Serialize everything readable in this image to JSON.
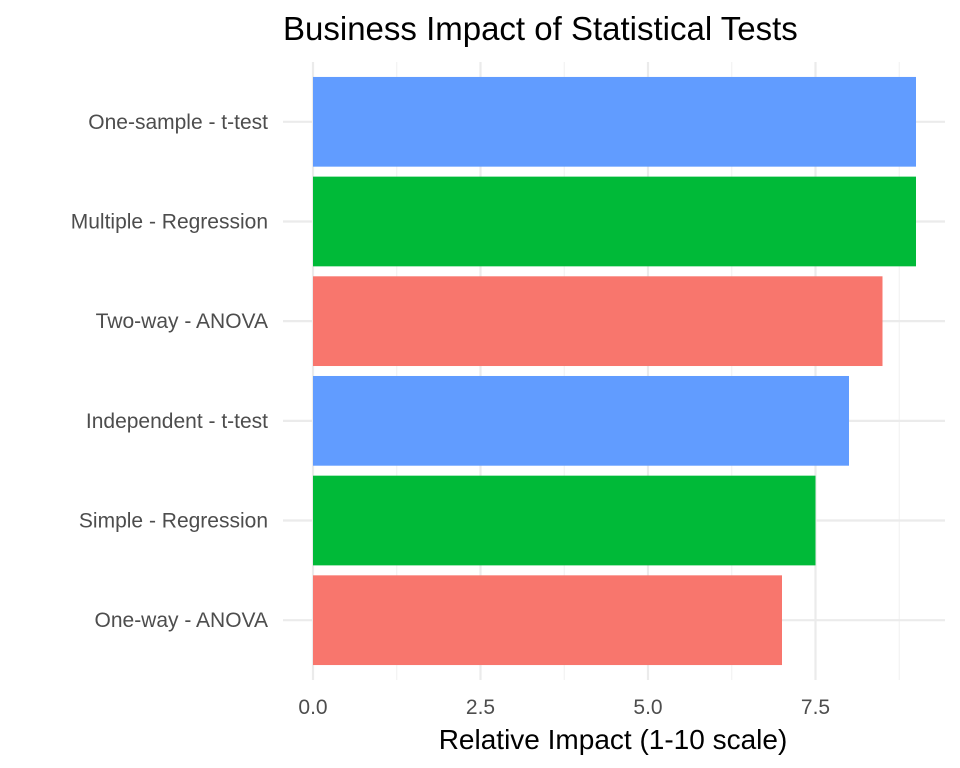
{
  "chart_data": {
    "type": "bar",
    "orientation": "horizontal",
    "title": "Business Impact of Statistical Tests",
    "xlabel": "Relative Impact (1-10 scale)",
    "ylabel": "",
    "xlim": [
      0,
      9.5
    ],
    "x_ticks": [
      0,
      2.5,
      5,
      7.5
    ],
    "x_tick_labels": [
      "0.0",
      "2.5",
      "5.0",
      "7.5"
    ],
    "grid": true,
    "legend": "none",
    "categories": [
      "One-sample - t-test",
      "Multiple - Regression",
      "Two-way - ANOVA",
      "Independent - t-test",
      "Simple - Regression",
      "One-way - ANOVA"
    ],
    "values": [
      9,
      9,
      8.5,
      8,
      7.5,
      7
    ],
    "bar_colors": [
      "#619CFF",
      "#00BA38",
      "#F8766D",
      "#619CFF",
      "#00BA38",
      "#F8766D"
    ]
  }
}
